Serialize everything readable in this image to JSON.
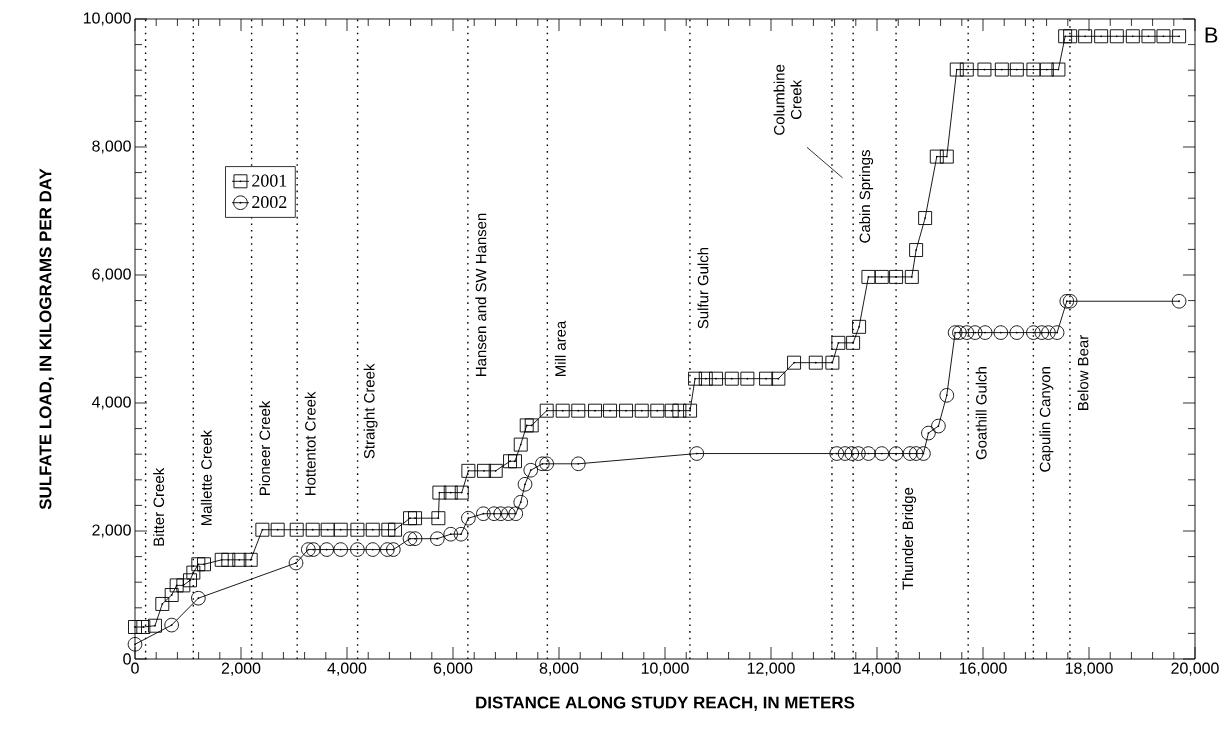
{
  "chart_data": {
    "type": "line",
    "xlabel": "DISTANCE ALONG STUDY REACH, IN METERS",
    "ylabel": "SULFATE LOAD, IN KILOGRAMS PER DAY",
    "xlim": [
      0,
      20000
    ],
    "ylim": [
      0,
      10000
    ],
    "xticks": [
      0,
      {
        "value": 2000,
        "label": "2,000"
      },
      {
        "value": 4000,
        "label": "4,000"
      },
      {
        "value": 6000,
        "label": "6,000"
      },
      {
        "value": 8000,
        "label": "8,000"
      },
      {
        "value": 10000,
        "label": "10,000"
      },
      {
        "value": 12000,
        "label": "12,000"
      },
      {
        "value": 14000,
        "label": "14,000"
      },
      {
        "value": 16000,
        "label": "16,000"
      },
      {
        "value": 18000,
        "label": "18,000"
      },
      {
        "value": 20000,
        "label": "20,000"
      }
    ],
    "yticks": [
      0,
      {
        "value": 2000,
        "label": "2,000"
      },
      {
        "value": 4000,
        "label": "4,000"
      },
      {
        "value": 6000,
        "label": "6,000"
      },
      {
        "value": 8000,
        "label": "8,000"
      },
      {
        "value": 10000,
        "label": "10,000"
      }
    ],
    "grid": false,
    "legend": "top left",
    "line_style": "solid",
    "series": [
      {
        "name": "2001",
        "color": "#000000",
        "marker": "square",
        "x": [
          0,
          157,
          377,
          515,
          692,
          786,
          912,
          1038,
          1101,
          1195,
          1302,
          1636,
          1761,
          1968,
          2183,
          2403,
          2692,
          3051,
          3353,
          3636,
          3881,
          4196,
          4486,
          4780,
          4906,
          5189,
          5284,
          5724,
          5743,
          5957,
          6165,
          6290,
          6586,
          6806,
          7076,
          7170,
          7278,
          7391,
          7485,
          7768,
          8070,
          8364,
          8680,
          8963,
          9265,
          9561,
          9855,
          10127,
          10271,
          10473,
          10567,
          10769,
          10963,
          11260,
          11554,
          11907,
          12139,
          12435,
          12845,
          13158,
          13271,
          13549,
          13662,
          13838,
          14090,
          14360,
          14657,
          14738,
          14908,
          15128,
          15317,
          15505,
          15694,
          16027,
          16355,
          16638,
          16951,
          17204,
          17423,
          17550,
          17644,
          17927,
          18229,
          18525,
          18827,
          19122,
          19405,
          19700
        ],
        "values": [
          500,
          500,
          520,
          860,
          1000,
          1150,
          1150,
          1230,
          1350,
          1480,
          1480,
          1550,
          1550,
          1550,
          1550,
          2020,
          2020,
          2020,
          2020,
          2020,
          2020,
          2020,
          2020,
          2020,
          2020,
          2200,
          2200,
          2200,
          2600,
          2600,
          2600,
          2940,
          2940,
          2940,
          3090,
          3090,
          3350,
          3650,
          3650,
          3880,
          3880,
          3880,
          3880,
          3880,
          3880,
          3880,
          3880,
          3880,
          3880,
          3880,
          4380,
          4380,
          4380,
          4380,
          4380,
          4380,
          4380,
          4630,
          4630,
          4630,
          4940,
          4940,
          5190,
          5970,
          5970,
          5970,
          5970,
          6390,
          6890,
          7850,
          7850,
          9210,
          9210,
          9210,
          9210,
          9210,
          9210,
          9210,
          9210,
          9730,
          9730,
          9730,
          9730,
          9730,
          9730,
          9730,
          9730,
          9730
        ]
      },
      {
        "name": "2002",
        "color": "#000000",
        "marker": "circle",
        "x": [
          0,
          692,
          1195,
          3038,
          3270,
          3365,
          3617,
          3881,
          4196,
          4486,
          4761,
          4874,
          5189,
          5284,
          5705,
          5957,
          6152,
          6290,
          6573,
          6774,
          6901,
          7044,
          7184,
          7278,
          7359,
          7467,
          7686,
          7768,
          8364,
          10600,
          13241,
          13398,
          13524,
          13649,
          13838,
          14090,
          14360,
          14624,
          14738,
          14876,
          14970,
          15159,
          15317,
          15474,
          15555,
          15694,
          15851,
          16040,
          16336,
          16638,
          16951,
          17110,
          17234,
          17398,
          17581,
          17644,
          19700
        ],
        "values": [
          230,
          530,
          950,
          1500,
          1710,
          1710,
          1710,
          1710,
          1710,
          1710,
          1710,
          1710,
          1880,
          1880,
          1880,
          1950,
          1950,
          2200,
          2270,
          2270,
          2270,
          2270,
          2270,
          2450,
          2730,
          2950,
          3050,
          3050,
          3050,
          3210,
          3210,
          3210,
          3210,
          3210,
          3210,
          3210,
          3210,
          3210,
          3210,
          3210,
          3530,
          3640,
          4120,
          5100,
          5100,
          5100,
          5100,
          5100,
          5100,
          5100,
          5100,
          5100,
          5100,
          5100,
          5590,
          5590,
          5590
        ]
      }
    ],
    "ref_lines": [
      {
        "axis": "x",
        "value": 200,
        "line_style": "dotted",
        "label": "Bitter Creek"
      },
      {
        "axis": "x",
        "value": 1100,
        "line_style": "dotted",
        "label": "Mallette Creek"
      },
      {
        "axis": "x",
        "value": 2200,
        "line_style": "dotted",
        "label": "Pioneer Creek"
      },
      {
        "axis": "x",
        "value": 3060,
        "line_style": "dotted",
        "label": "Hottentot Creek"
      },
      {
        "axis": "x",
        "value": 4200,
        "line_style": "dotted",
        "label": "Straight Creek"
      },
      {
        "axis": "x",
        "value": 6280,
        "line_style": "dotted",
        "label": "Hansen and SW Hansen"
      },
      {
        "axis": "x",
        "value": 7780,
        "line_style": "dotted",
        "label": "Mill area"
      },
      {
        "axis": "x",
        "value": 10470,
        "line_style": "dotted",
        "label": "Sulfur Gulch"
      },
      {
        "axis": "x",
        "value": 13150,
        "line_style": "dotted",
        "label": "Columbine Creek"
      },
      {
        "axis": "x",
        "value": 13550,
        "line_style": "dotted",
        "label": "Cabin Springs"
      },
      {
        "axis": "x",
        "value": 14360,
        "line_style": "dotted",
        "label": "Thunder Bridge"
      },
      {
        "axis": "x",
        "value": 15720,
        "line_style": "dotted",
        "label": "Goathill Gulch"
      },
      {
        "axis": "x",
        "value": 16950,
        "line_style": "dotted",
        "label": "Capulin Canyon"
      },
      {
        "axis": "x",
        "value": 17640,
        "line_style": "dotted",
        "label": "Below Bear"
      }
    ],
    "annotations": [
      "B"
    ]
  }
}
